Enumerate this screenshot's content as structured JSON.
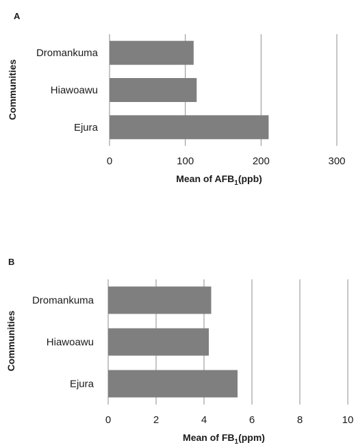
{
  "panels": [
    {
      "letter": "A",
      "ylabel": "Communities",
      "xlabel_main": "Mean of AFB",
      "xlabel_sub": "1",
      "xlabel_tail": "(ppb)"
    },
    {
      "letter": "B",
      "ylabel": "Communities",
      "xlabel_main": "Mean of FB",
      "xlabel_sub": "1",
      "xlabel_tail": "(ppm)"
    }
  ],
  "chart_data": [
    {
      "type": "bar",
      "orientation": "horizontal",
      "categories": [
        "Dromankuma",
        "Hiawoawu",
        "Ejura"
      ],
      "values": [
        111,
        115,
        210
      ],
      "xlabel": "Mean of AFB1(ppb)",
      "ylabel": "Communities",
      "xlim": [
        0,
        300
      ],
      "xticks": [
        0,
        100,
        200,
        300
      ],
      "grid": true,
      "bar_color": "#7f7f7f"
    },
    {
      "type": "bar",
      "orientation": "horizontal",
      "categories": [
        "Dromankuma",
        "Hiawoawu",
        "Ejura"
      ],
      "values": [
        4.3,
        4.2,
        5.4
      ],
      "xlabel": "Mean of FB1(ppm)",
      "ylabel": "Communities",
      "xlim": [
        0,
        10
      ],
      "xticks": [
        0,
        2,
        4,
        6,
        8,
        10
      ],
      "grid": true,
      "bar_color": "#7f7f7f"
    }
  ]
}
